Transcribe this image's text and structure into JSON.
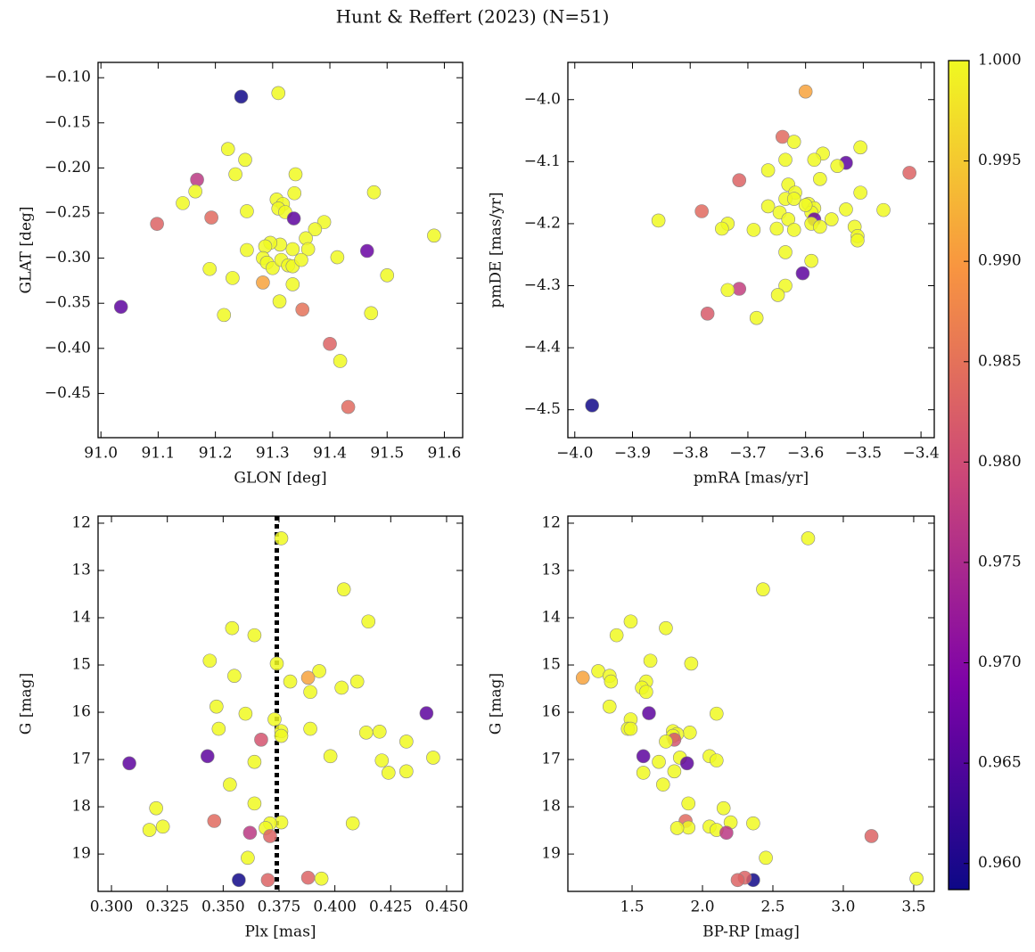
{
  "title": "Hunt & Reffert (2023) (N=51)",
  "colorbar": {
    "cmap": "plasma",
    "clim": [
      0.9587,
      1.0
    ],
    "ticks": [
      {
        "value": 0.96,
        "label": "0.960"
      },
      {
        "value": 0.965,
        "label": "0.965"
      },
      {
        "value": 0.97,
        "label": "0.970"
      },
      {
        "value": 0.975,
        "label": "0.975"
      },
      {
        "value": 0.98,
        "label": "0.980"
      },
      {
        "value": 0.985,
        "label": "0.985"
      },
      {
        "value": 0.99,
        "label": "0.990"
      },
      {
        "value": 0.995,
        "label": "0.995"
      },
      {
        "value": 1.0,
        "label": "1.000"
      }
    ]
  },
  "chart_data": [
    {
      "type": "scatter",
      "xlabel": "GLON [deg]",
      "ylabel": "GLAT [deg]",
      "xlim": [
        90.995,
        91.632
      ],
      "ylim": [
        -0.499,
        -0.083
      ],
      "xticks": [
        {
          "value": 91.0,
          "label": "91.0"
        },
        91.1,
        91.2,
        91.3,
        91.4,
        91.5,
        91.6
      ],
      "yticks": [
        {
          "value": -0.1,
          "label": "−0.10"
        },
        {
          "value": -0.15,
          "label": "−0.15"
        },
        {
          "value": -0.2,
          "label": "−0.20"
        },
        {
          "value": -0.25,
          "label": "−0.25"
        },
        {
          "value": -0.3,
          "label": "−0.30"
        },
        {
          "value": -0.35,
          "label": "−0.35"
        },
        {
          "value": -0.4,
          "label": "−0.40"
        },
        {
          "value": -0.45,
          "label": "−0.45"
        }
      ],
      "x": [
        91.245,
        91.31,
        91.222,
        91.252,
        91.168,
        91.165,
        91.143,
        91.235,
        91.34,
        91.307,
        91.318,
        91.31,
        91.322,
        91.338,
        91.255,
        91.193,
        91.098,
        91.337,
        91.39,
        91.374,
        91.358,
        91.362,
        91.335,
        91.313,
        91.296,
        91.287,
        91.255,
        91.283,
        91.29,
        91.3,
        91.315,
        91.327,
        91.335,
        91.35,
        91.19,
        91.23,
        91.283,
        91.335,
        91.312,
        91.352,
        91.215,
        91.035,
        91.465,
        91.413,
        91.477,
        91.5,
        91.582,
        91.472,
        91.4,
        91.418,
        91.432
      ],
      "y": [
        -0.121,
        -0.117,
        -0.179,
        -0.191,
        -0.213,
        -0.226,
        -0.239,
        -0.207,
        -0.207,
        -0.235,
        -0.24,
        -0.245,
        -0.249,
        -0.228,
        -0.248,
        -0.255,
        -0.262,
        -0.256,
        -0.26,
        -0.268,
        -0.278,
        -0.29,
        -0.29,
        -0.285,
        -0.283,
        -0.287,
        -0.291,
        -0.3,
        -0.305,
        -0.311,
        -0.302,
        -0.308,
        -0.309,
        -0.302,
        -0.312,
        -0.322,
        -0.327,
        -0.329,
        -0.348,
        -0.357,
        -0.363,
        -0.354,
        -0.292,
        -0.299,
        -0.227,
        -0.319,
        -0.275,
        -0.361,
        -0.395,
        -0.414,
        -0.465
      ],
      "c": [
        0.959,
        1,
        1,
        1,
        0.977,
        1,
        1,
        1,
        1,
        1,
        1,
        1,
        1,
        1,
        1,
        0.984,
        0.983,
        0.966,
        1,
        1,
        1,
        1,
        1,
        1,
        1,
        1,
        1,
        1,
        1,
        1,
        1,
        1,
        1,
        1,
        1,
        1,
        0.991,
        1,
        1,
        0.985,
        1,
        0.966,
        0.967,
        1,
        1,
        1,
        1,
        1,
        0.983,
        1,
        0.984
      ]
    },
    {
      "type": "scatter",
      "xlabel": "pmRA [mas/yr]",
      "ylabel": "pmDE [mas/yr]",
      "xlim": [
        -4.012,
        -3.377
      ],
      "ylim": [
        -4.545,
        -3.94
      ],
      "xticks": [
        {
          "value": -4.0,
          "label": "−4.0"
        },
        {
          "value": -3.9,
          "label": "−3.9"
        },
        {
          "value": -3.8,
          "label": "−3.8"
        },
        {
          "value": -3.7,
          "label": "−3.7"
        },
        {
          "value": -3.6,
          "label": "−3.6"
        },
        {
          "value": -3.5,
          "label": "−3.5"
        },
        {
          "value": -3.4,
          "label": "−3.4"
        }
      ],
      "yticks": [
        {
          "value": -4.0,
          "label": "−4.0"
        },
        {
          "value": -4.1,
          "label": "−4.1"
        },
        {
          "value": -4.2,
          "label": "−4.2"
        },
        {
          "value": -4.3,
          "label": "−4.3"
        },
        {
          "value": -4.4,
          "label": "−4.4"
        },
        {
          "value": -4.5,
          "label": "−4.5"
        }
      ],
      "x": [
        -3.97,
        -3.6,
        -3.64,
        -3.62,
        -3.57,
        -3.53,
        -3.505,
        -3.585,
        -3.635,
        -3.665,
        -3.715,
        -3.42,
        -3.545,
        -3.575,
        -3.63,
        -3.618,
        -3.505,
        -3.635,
        -3.62,
        -3.595,
        -3.585,
        -3.665,
        -3.645,
        -3.59,
        -3.53,
        -3.78,
        -3.465,
        -3.855,
        -3.735,
        -3.63,
        -3.585,
        -3.555,
        -3.59,
        -3.575,
        -3.515,
        -3.745,
        -3.69,
        -3.62,
        -3.65,
        -3.51,
        -3.51,
        -3.635,
        -3.59,
        -3.605,
        -3.635,
        -3.715,
        -3.735,
        -3.648,
        -3.77,
        -3.685,
        -3.6
      ],
      "y": [
        -4.493,
        -3.987,
        -4.06,
        -4.068,
        -4.087,
        -4.102,
        -4.077,
        -4.097,
        -4.097,
        -4.114,
        -4.13,
        -4.118,
        -4.107,
        -4.128,
        -4.137,
        -4.15,
        -4.15,
        -4.16,
        -4.16,
        -4.168,
        -4.175,
        -4.172,
        -4.182,
        -4.182,
        -4.177,
        -4.18,
        -4.178,
        -4.195,
        -4.2,
        -4.193,
        -4.193,
        -4.193,
        -4.2,
        -4.205,
        -4.205,
        -4.208,
        -4.21,
        -4.21,
        -4.208,
        -4.22,
        -4.227,
        -4.246,
        -4.26,
        -4.28,
        -4.3,
        -4.305,
        -4.307,
        -4.315,
        -4.345,
        -4.352,
        -4.17
      ],
      "c": [
        0.959,
        0.991,
        0.984,
        1,
        1,
        0.966,
        1,
        1,
        1,
        1,
        0.983,
        0.983,
        1,
        1,
        1,
        1,
        1,
        1,
        1,
        1,
        1,
        1,
        1,
        1,
        1,
        0.984,
        1,
        1,
        1,
        1,
        0.967,
        1,
        1,
        1,
        1,
        1,
        1,
        1,
        1,
        1,
        1,
        1,
        1,
        0.966,
        1,
        0.978,
        1,
        1,
        0.982,
        1,
        1
      ]
    },
    {
      "type": "scatter",
      "xlabel": "Plx [mas]",
      "ylabel": "G [mag]",
      "xlim": [
        0.294,
        0.4572
      ],
      "ylim": [
        19.79,
        11.85
      ],
      "vline": 0.374,
      "xticks": [
        {
          "value": 0.3,
          "label": "0.300"
        },
        {
          "value": 0.325,
          "label": "0.325"
        },
        {
          "value": 0.35,
          "label": "0.350"
        },
        {
          "value": 0.375,
          "label": "0.375"
        },
        {
          "value": 0.4,
          "label": "0.400"
        },
        {
          "value": 0.425,
          "label": "0.425"
        },
        {
          "value": 0.45,
          "label": "0.450"
        }
      ],
      "yticks": [
        12,
        13,
        14,
        15,
        16,
        17,
        18,
        19
      ],
      "x": [
        0.357,
        0.376,
        0.404,
        0.415,
        0.354,
        0.364,
        0.344,
        0.374,
        0.393,
        0.355,
        0.388,
        0.38,
        0.41,
        0.403,
        0.389,
        0.347,
        0.36,
        0.441,
        0.373,
        0.348,
        0.389,
        0.376,
        0.414,
        0.42,
        0.376,
        0.367,
        0.432,
        0.343,
        0.398,
        0.444,
        0.421,
        0.364,
        0.308,
        0.424,
        0.432,
        0.353,
        0.364,
        0.32,
        0.346,
        0.376,
        0.371,
        0.408,
        0.323,
        0.317,
        0.369,
        0.362,
        0.371,
        0.361,
        0.388,
        0.394,
        0.37
      ],
      "y": [
        19.55,
        12.32,
        13.4,
        14.08,
        14.22,
        14.37,
        14.91,
        14.97,
        15.13,
        15.23,
        15.27,
        15.35,
        15.35,
        15.48,
        15.57,
        15.88,
        16.03,
        16.02,
        16.15,
        16.35,
        16.35,
        16.4,
        16.43,
        16.41,
        16.5,
        16.58,
        16.62,
        16.93,
        16.93,
        16.96,
        17.02,
        17.05,
        17.08,
        17.28,
        17.25,
        17.53,
        17.93,
        18.03,
        18.3,
        18.33,
        18.35,
        18.35,
        18.42,
        18.49,
        18.45,
        18.55,
        18.62,
        19.08,
        19.5,
        19.52,
        19.55
      ],
      "c": [
        0.959,
        1,
        1,
        1,
        1,
        1,
        1,
        1,
        1,
        1,
        0.991,
        1,
        1,
        1,
        1,
        1,
        1,
        0.966,
        1,
        1,
        1,
        1,
        1,
        1,
        1,
        0.981,
        1,
        0.966,
        1,
        1,
        1,
        1,
        0.966,
        1,
        1,
        1,
        1,
        1,
        0.984,
        1,
        1,
        1,
        1,
        1,
        1,
        0.977,
        0.983,
        1,
        0.983,
        1,
        0.983
      ]
    },
    {
      "type": "scatter",
      "xlabel": "BP-RP [mag]",
      "ylabel": "G [mag]",
      "xlim": [
        1.044,
        3.646
      ],
      "ylim": [
        19.79,
        11.85
      ],
      "xticks": [
        1.5,
        {
          "value": 2.0,
          "label": "2.0"
        },
        2.5,
        {
          "value": 3.0,
          "label": "3.0"
        },
        3.5
      ],
      "yticks": [
        12,
        13,
        14,
        15,
        16,
        17,
        18,
        19
      ],
      "x": [
        2.36,
        2.75,
        2.43,
        1.49,
        1.74,
        1.39,
        1.63,
        1.92,
        1.26,
        1.34,
        1.15,
        1.35,
        1.6,
        1.57,
        1.6,
        1.34,
        2.1,
        1.62,
        1.49,
        1.47,
        1.49,
        1.79,
        1.91,
        1.82,
        1.79,
        1.8,
        1.74,
        1.58,
        2.05,
        1.84,
        2.1,
        1.69,
        1.89,
        1.58,
        1.8,
        1.72,
        1.9,
        2.15,
        1.88,
        2.2,
        2.36,
        2.05,
        1.9,
        2.1,
        1.82,
        2.17,
        3.2,
        2.45,
        2.3,
        3.52,
        2.25
      ],
      "y": [
        19.55,
        12.32,
        13.4,
        14.08,
        14.22,
        14.37,
        14.91,
        14.97,
        15.13,
        15.23,
        15.27,
        15.35,
        15.35,
        15.48,
        15.57,
        15.88,
        16.03,
        16.02,
        16.15,
        16.35,
        16.35,
        16.4,
        16.43,
        16.46,
        16.5,
        16.58,
        16.62,
        16.93,
        16.93,
        16.96,
        17.02,
        17.05,
        17.08,
        17.28,
        17.25,
        17.53,
        17.93,
        18.03,
        18.3,
        18.33,
        18.35,
        18.42,
        18.44,
        18.49,
        18.45,
        18.55,
        18.62,
        19.08,
        19.5,
        19.52,
        19.55
      ],
      "c": [
        0.959,
        1,
        1,
        1,
        1,
        1,
        1,
        1,
        1,
        1,
        0.991,
        1,
        1,
        1,
        1,
        1,
        1,
        0.966,
        1,
        1,
        1,
        1,
        1,
        1,
        1,
        0.981,
        1,
        0.966,
        1,
        1,
        1,
        1,
        0.966,
        1,
        1,
        1,
        1,
        1,
        0.984,
        1,
        1,
        1,
        1,
        1,
        1,
        0.977,
        0.983,
        1,
        0.983,
        1,
        0.983
      ]
    }
  ]
}
